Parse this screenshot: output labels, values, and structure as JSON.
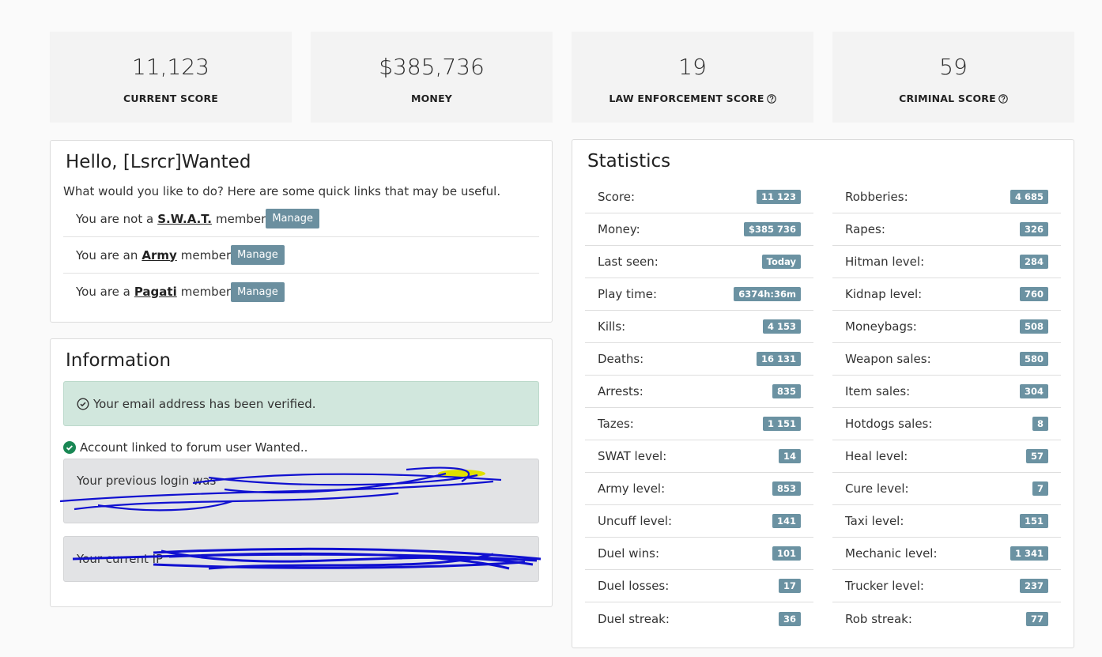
{
  "summary": [
    {
      "value": "11,123",
      "label": "CURRENT SCORE"
    },
    {
      "value": "$385,736",
      "label": "MONEY"
    },
    {
      "value": "19",
      "label": "LAW ENFORCEMENT SCORE"
    },
    {
      "value": "59",
      "label": "CRIMINAL SCORE"
    }
  ],
  "hello": {
    "title": "Hello, [Lsrcr]Wanted",
    "subtitle": "What would you like to do? Here are some quick links that may be useful.",
    "memberships": [
      {
        "prefix": "You are not a",
        "link": "S.W.A.T.",
        "suffix": "member",
        "button": "Manage"
      },
      {
        "prefix": "You are an",
        "link": "Army",
        "suffix": "member",
        "button": "Manage"
      },
      {
        "prefix": "You are a",
        "link": "Pagati",
        "suffix": "member",
        "button": "Manage"
      }
    ]
  },
  "information": {
    "title": "Information",
    "email_notice": "Your email address has been verified.",
    "forum_notice": "Account linked to forum user Wanted..",
    "previous_login": "Your previous login was",
    "current_ip": "Your current IP"
  },
  "statistics": {
    "title": "Statistics",
    "left": [
      {
        "label": "Score:",
        "value": "11 123"
      },
      {
        "label": "Money:",
        "value": "$385 736"
      },
      {
        "label": "Last seen:",
        "value": "Today"
      },
      {
        "label": "Play time:",
        "value": "6374h:36m"
      },
      {
        "label": "Kills:",
        "value": "4 153"
      },
      {
        "label": "Deaths:",
        "value": "16 131"
      },
      {
        "label": "Arrests:",
        "value": "835"
      },
      {
        "label": "Tazes:",
        "value": "1 151"
      },
      {
        "label": "SWAT level:",
        "value": "14"
      },
      {
        "label": "Army level:",
        "value": "853"
      },
      {
        "label": "Uncuff level:",
        "value": "141"
      },
      {
        "label": "Duel wins:",
        "value": "101"
      },
      {
        "label": "Duel losses:",
        "value": "17"
      },
      {
        "label": "Duel streak:",
        "value": "36"
      }
    ],
    "right": [
      {
        "label": "Robberies:",
        "value": "4 685"
      },
      {
        "label": "Rapes:",
        "value": "326"
      },
      {
        "label": "Hitman level:",
        "value": "284"
      },
      {
        "label": "Kidnap level:",
        "value": "760"
      },
      {
        "label": "Moneybags:",
        "value": "508"
      },
      {
        "label": "Weapon sales:",
        "value": "580"
      },
      {
        "label": "Item sales:",
        "value": "304"
      },
      {
        "label": "Hotdogs sales:",
        "value": "8"
      },
      {
        "label": "Heal level:",
        "value": "57"
      },
      {
        "label": "Cure level:",
        "value": "7"
      },
      {
        "label": "Taxi level:",
        "value": "151"
      },
      {
        "label": "Mechanic level:",
        "value": "1 341"
      },
      {
        "label": "Trucker level:",
        "value": "237"
      },
      {
        "label": "Rob streak:",
        "value": "77"
      }
    ]
  }
}
